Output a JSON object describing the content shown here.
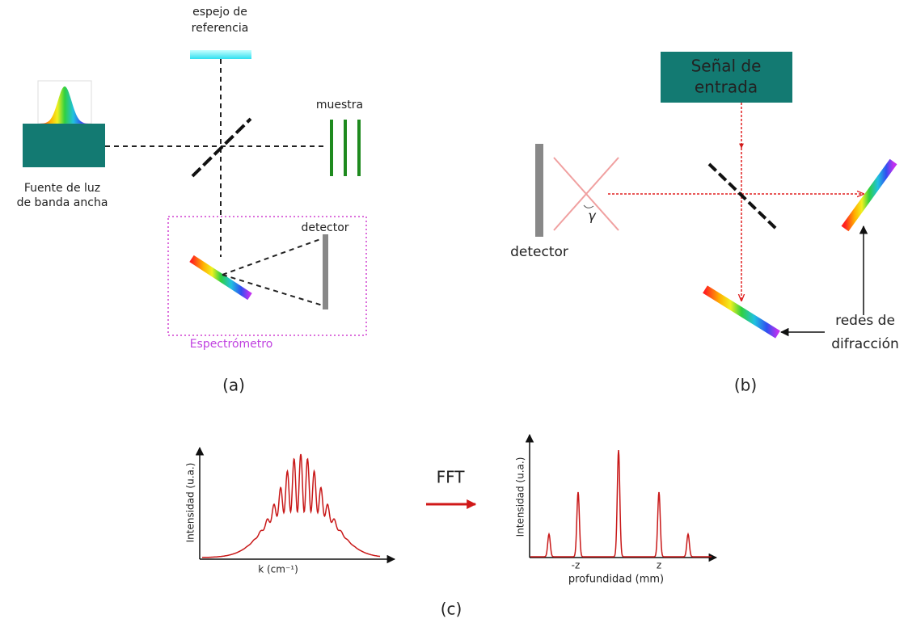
{
  "panel_a": {
    "reference_mirror": [
      "espejo de",
      "referencia"
    ],
    "sample": "muestra",
    "source": [
      "Fuente de luz",
      "de banda ancha"
    ],
    "detector": "detector",
    "spectrometer": "Espectrómetro",
    "caption": "(a)"
  },
  "panel_b": {
    "input": [
      "Señal de",
      "entrada"
    ],
    "detector": "detector",
    "angle": "γ",
    "gratings": [
      "redes de",
      "difracción"
    ],
    "caption": "(b)"
  },
  "panel_c": {
    "left_y_label": "Intensidad (u.a.)",
    "left_x_label": "k (cm⁻¹)",
    "transform": "FFT",
    "right_y_label": "Intensidad (u.a.)",
    "right_ticks": [
      "-z",
      "z"
    ],
    "right_x_label": "profundidad (mm)",
    "caption": "(c)"
  }
}
